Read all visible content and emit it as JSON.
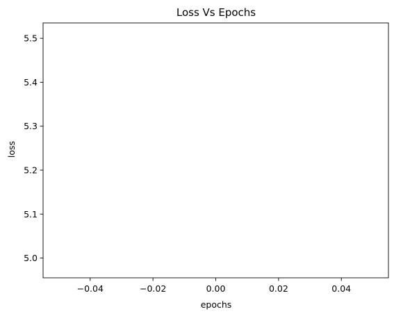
{
  "chart_data": {
    "type": "line",
    "title": "Loss Vs Epochs",
    "xlabel": "epochs",
    "ylabel": "loss",
    "xlim": [
      -0.055,
      0.055
    ],
    "ylim": [
      4.955,
      5.535
    ],
    "x_ticks": [
      {
        "value": -0.04,
        "label": "−0.04"
      },
      {
        "value": -0.02,
        "label": "−0.02"
      },
      {
        "value": 0.0,
        "label": "0.00"
      },
      {
        "value": 0.02,
        "label": "0.02"
      },
      {
        "value": 0.04,
        "label": "0.04"
      }
    ],
    "y_ticks": [
      {
        "value": 5.0,
        "label": "5.0"
      },
      {
        "value": 5.1,
        "label": "5.1"
      },
      {
        "value": 5.2,
        "label": "5.2"
      },
      {
        "value": 5.3,
        "label": "5.3"
      },
      {
        "value": 5.4,
        "label": "5.4"
      },
      {
        "value": 5.5,
        "label": "5.5"
      }
    ],
    "series": [
      {
        "x": [],
        "y": []
      }
    ],
    "grid": false,
    "colors": {
      "axis": "#000000",
      "background": "#ffffff",
      "series": "#1f77b4"
    }
  }
}
